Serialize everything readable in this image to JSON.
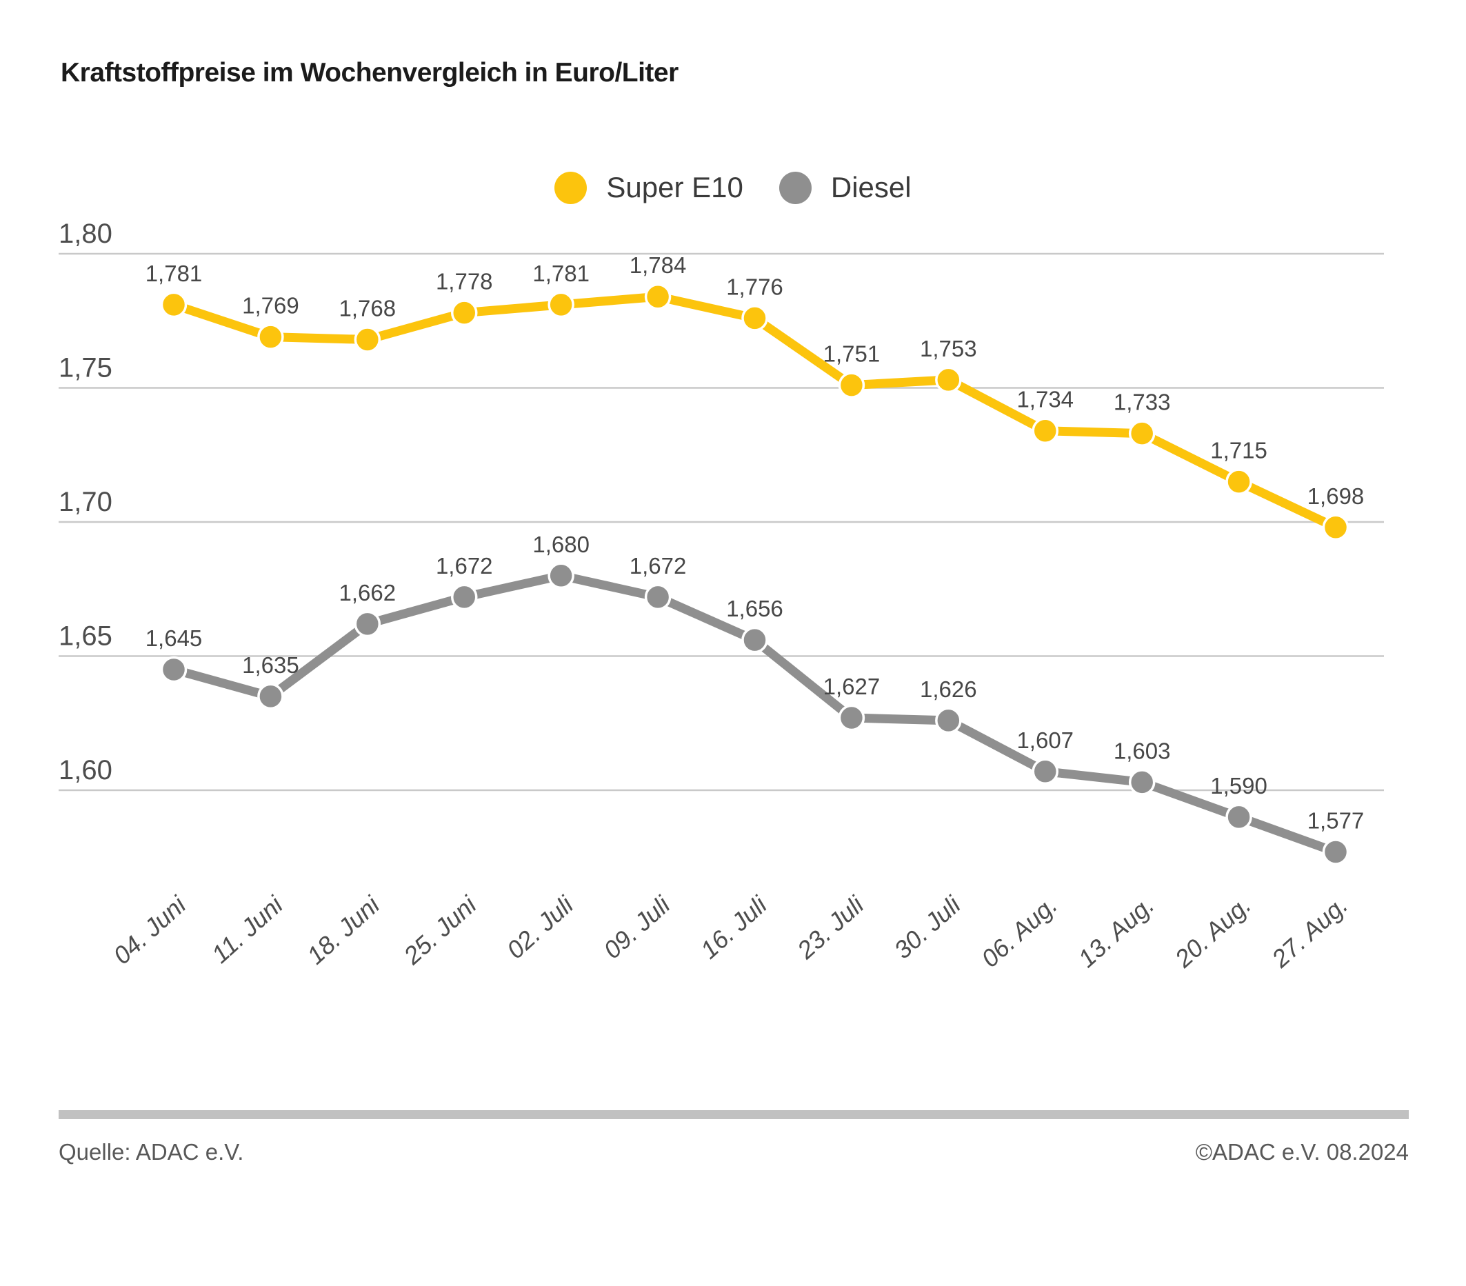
{
  "header": {
    "title": "Kraftstoffpreise im Wochenvergleich in Euro/Liter"
  },
  "footer": {
    "source": "Quelle: ADAC e.V.",
    "copyright": "©ADAC e.V. 08.2024"
  },
  "colors": {
    "super_e10": "#FCC40D",
    "diesel": "#8F8F8F",
    "gridline": "#C9C9C9",
    "text_dark": "#474747"
  },
  "chart_data": {
    "type": "line",
    "title": "Kraftstoffpreise im Wochenvergleich in Euro/Liter",
    "xlabel": "",
    "ylabel": "Euro/Liter",
    "categories": [
      "04. Juni",
      "11. Juni",
      "18. Juni",
      "25. Juni",
      "02. Juli",
      "09. Juli",
      "16. Juli",
      "23. Juli",
      "30. Juli",
      "06. Aug.",
      "13. Aug.",
      "20. Aug.",
      "27. Aug."
    ],
    "series": [
      {
        "name": "Super E10",
        "color": "#FCC40D",
        "values": [
          1.781,
          1.769,
          1.768,
          1.778,
          1.781,
          1.784,
          1.776,
          1.751,
          1.753,
          1.734,
          1.733,
          1.715,
          1.698
        ],
        "value_labels": [
          "1,781",
          "1,769",
          "1,768",
          "1,778",
          "1,781",
          "1,784",
          "1,776",
          "1,751",
          "1,753",
          "1,734",
          "1,733",
          "1,715",
          "1,698"
        ]
      },
      {
        "name": "Diesel",
        "color": "#8F8F8F",
        "values": [
          1.645,
          1.635,
          1.662,
          1.672,
          1.68,
          1.672,
          1.656,
          1.627,
          1.626,
          1.607,
          1.603,
          1.59,
          1.577
        ],
        "value_labels": [
          "1,645",
          "1,635",
          "1,662",
          "1,672",
          "1,680",
          "1,672",
          "1,656",
          "1,627",
          "1,626",
          "1,607",
          "1,603",
          "1,590",
          "1,577"
        ]
      }
    ],
    "yticks": [
      1.8,
      1.75,
      1.7,
      1.65,
      1.6
    ],
    "ytick_labels": [
      "1,80",
      "1,75",
      "1,70",
      "1,65",
      "1,60"
    ],
    "ylim": [
      1.55,
      1.815
    ],
    "grid": true,
    "legend_position": "top-center"
  }
}
